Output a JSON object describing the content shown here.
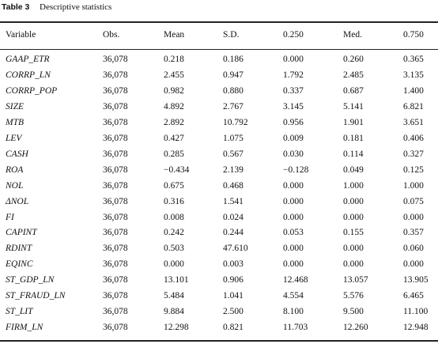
{
  "title": {
    "label": "Table 3",
    "text": "Descriptive statistics"
  },
  "table": {
    "header": [
      "Variable",
      "Obs.",
      "Mean",
      "S.D.",
      "0.250",
      "Med.",
      "0.750"
    ],
    "rows": [
      [
        "GAAP_ETR",
        "36,078",
        "0.218",
        "0.186",
        "0.000",
        "0.260",
        "0.365"
      ],
      [
        "CORRP_LN",
        "36,078",
        "2.455",
        "0.947",
        "1.792",
        "2.485",
        "3.135"
      ],
      [
        "CORRP_POP",
        "36,078",
        "0.982",
        "0.880",
        "0.337",
        "0.687",
        "1.400"
      ],
      [
        "SIZE",
        "36,078",
        "4.892",
        "2.767",
        "3.145",
        "5.141",
        "6.821"
      ],
      [
        "MTB",
        "36,078",
        "2.892",
        "10.792",
        "0.956",
        "1.901",
        "3.651"
      ],
      [
        "LEV",
        "36,078",
        "0.427",
        "1.075",
        "0.009",
        "0.181",
        "0.406"
      ],
      [
        "CASH",
        "36,078",
        "0.285",
        "0.567",
        "0.030",
        "0.114",
        "0.327"
      ],
      [
        "ROA",
        "36,078",
        "−0.434",
        "2.139",
        "−0.128",
        "0.049",
        "0.125"
      ],
      [
        "NOL",
        "36,078",
        "0.675",
        "0.468",
        "0.000",
        "1.000",
        "1.000"
      ],
      [
        "ΔNOL",
        "36,078",
        "0.316",
        "1.541",
        "0.000",
        "0.000",
        "0.075"
      ],
      [
        "FI",
        "36,078",
        "0.008",
        "0.024",
        "0.000",
        "0.000",
        "0.000"
      ],
      [
        "CAPINT",
        "36,078",
        "0.242",
        "0.244",
        "0.053",
        "0.155",
        "0.357"
      ],
      [
        "RDINT",
        "36,078",
        "0.503",
        "47.610",
        "0.000",
        "0.000",
        "0.060"
      ],
      [
        "EQINC",
        "36,078",
        "0.000",
        "0.003",
        "0.000",
        "0.000",
        "0.000"
      ],
      [
        "ST_GDP_LN",
        "36,078",
        "13.101",
        "0.906",
        "12.468",
        "13.057",
        "13.905"
      ],
      [
        "ST_FRAUD_LN",
        "36,078",
        "5.484",
        "1.041",
        "4.554",
        "5.576",
        "6.465"
      ],
      [
        "ST_LIT",
        "36,078",
        "9.884",
        "2.500",
        "8.100",
        "9.500",
        "11.100"
      ],
      [
        "FIRM_LN",
        "36,078",
        "12.298",
        "0.821",
        "11.703",
        "12.260",
        "12.948"
      ]
    ]
  }
}
